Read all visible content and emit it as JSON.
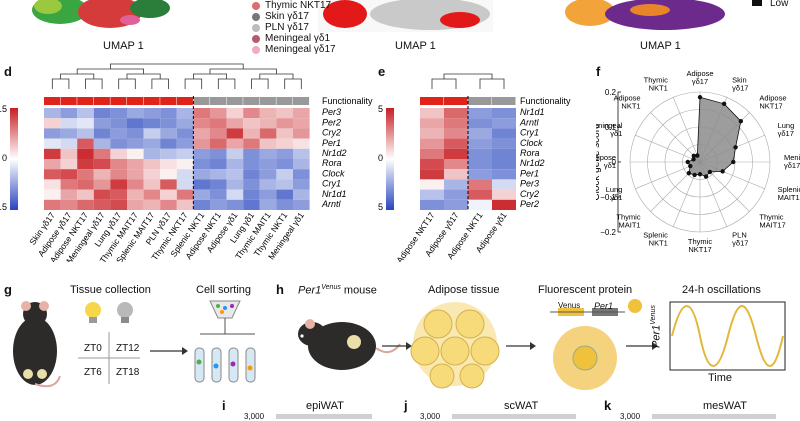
{
  "top": {
    "umap_label": "UMAP 1",
    "legend_items": [
      {
        "label": "Thymic NKT17",
        "color": "#e06d6d"
      },
      {
        "label": "Skin γδ17",
        "color": "#777777"
      },
      {
        "label": "PLN γδ17",
        "color": "#bdbdbd"
      },
      {
        "label": "Meningeal γδ1",
        "color": "#b85a6e"
      },
      {
        "label": "Meningeal γδ17",
        "color": "#f2a8c8"
      }
    ],
    "scale_low": "Low"
  },
  "panel_d": {
    "letter": "d",
    "title_scale": "z-score",
    "scale_ticks": [
      "1.5",
      "0",
      "−1.5"
    ],
    "functionality": "Functionality",
    "genes": [
      "Per3",
      "Per2",
      "Cry2",
      "Per1",
      "Nr1d2",
      "Rora",
      "Clock",
      "Cry1",
      "Nr1d1",
      "Arntl"
    ],
    "columns": [
      "Skin γδ17",
      "Adipose γδ17",
      "Adipose NKT17",
      "Meningeal γδ17",
      "Lung γδ17",
      "Thymic MAIT17",
      "Splenic MAIT17",
      "PLN γδ17",
      "Thymic NKT17",
      "Splenic NKT1",
      "Adipose NKT1",
      "Adipose γδ1",
      "Lung γδ1",
      "Thymic MAIT1",
      "Thymic NKT1",
      "Meningeal γδ1"
    ],
    "func_colors": [
      "#e0241a",
      "#e0241a",
      "#e0241a",
      "#e0241a",
      "#e0241a",
      "#e0241a",
      "#e0241a",
      "#e0241a",
      "#e0241a",
      "#999999",
      "#999999",
      "#999999",
      "#999999",
      "#999999",
      "#999999",
      "#999999"
    ],
    "matrix": [
      [
        -0.6,
        -0.8,
        -0.5,
        -1.0,
        -0.9,
        -0.7,
        -0.8,
        -0.9,
        -0.6,
        0.9,
        0.7,
        0.3,
        0.8,
        0.5,
        0.4,
        0.6
      ],
      [
        0.3,
        -0.3,
        -0.2,
        -0.8,
        -0.9,
        -1.1,
        -1.0,
        -0.9,
        -0.7,
        0.8,
        0.9,
        0.6,
        0.4,
        0.5,
        0.7,
        0.6
      ],
      [
        -0.8,
        -0.7,
        -0.5,
        -1.0,
        -0.8,
        -0.9,
        -0.4,
        -0.7,
        -0.9,
        0.6,
        0.8,
        1.3,
        0.5,
        1.0,
        0.4,
        0.7
      ],
      [
        -0.2,
        -0.3,
        1.1,
        -0.6,
        -0.9,
        -0.8,
        -0.7,
        -1.0,
        -0.8,
        0.7,
        1.0,
        0.6,
        0.9,
        0.4,
        0.3,
        0.2
      ],
      [
        1.3,
        0.4,
        1.4,
        0.9,
        0.3,
        0.1,
        -0.6,
        -0.5,
        -0.4,
        -0.8,
        -0.9,
        -0.4,
        -0.9,
        -0.7,
        -0.8,
        -0.5
      ],
      [
        0.6,
        0.3,
        1.3,
        1.2,
        0.8,
        0.6,
        0.4,
        0.2,
        0.1,
        -0.9,
        -1.0,
        -0.6,
        -0.9,
        -0.8,
        -0.9,
        -0.6
      ],
      [
        1.1,
        1.2,
        0.9,
        0.5,
        0.8,
        0.6,
        0.3,
        0.1,
        -0.3,
        -0.7,
        -0.6,
        -0.5,
        -1.0,
        -0.8,
        -0.4,
        -0.9
      ],
      [
        0.2,
        0.9,
        1.0,
        0.7,
        1.3,
        0.8,
        0.4,
        1.1,
        -0.3,
        -1.1,
        -1.0,
        -0.6,
        -0.9,
        -0.6,
        -0.5,
        -0.8
      ],
      [
        0.1,
        0.6,
        0.4,
        1.2,
        1.1,
        0.5,
        0.8,
        0.3,
        0.9,
        -0.7,
        -0.9,
        -0.3,
        -1.0,
        -0.8,
        -1.1,
        -0.6
      ],
      [
        0.9,
        0.8,
        1.0,
        1.1,
        1.2,
        0.6,
        0.5,
        0.8,
        0.4,
        -1.0,
        -0.8,
        -0.9,
        -1.1,
        -0.7,
        -0.9,
        -0.8
      ]
    ]
  },
  "panel_e": {
    "letter": "e",
    "title_scale": "z-score",
    "scale_ticks": [
      "1.5",
      "0",
      "−1.5"
    ],
    "functionality": "Functionality",
    "genes": [
      "Nr1d1",
      "Arntl",
      "Cry1",
      "Clock",
      "Rora",
      "Nr1d2",
      "Per1",
      "Per3",
      "Cry2",
      "Per2"
    ],
    "columns": [
      "Adipose NKT17",
      "Adipose γδ17",
      "Adipose NKT1",
      "Adipose γδ1"
    ],
    "func_colors": [
      "#e0241a",
      "#e0241a",
      "#999999",
      "#999999"
    ],
    "matrix": [
      [
        0.4,
        1.0,
        -0.8,
        -0.9
      ],
      [
        0.6,
        0.9,
        -0.9,
        -0.8
      ],
      [
        0.5,
        0.8,
        -0.7,
        -1.0
      ],
      [
        0.7,
        1.1,
        -0.8,
        -0.9
      ],
      [
        0.9,
        1.3,
        -0.9,
        -1.0
      ],
      [
        1.2,
        0.8,
        -0.9,
        -1.0
      ],
      [
        1.3,
        0.4,
        -0.8,
        -0.9
      ],
      [
        0.1,
        -0.6,
        0.9,
        -0.3
      ],
      [
        -0.5,
        -0.8,
        1.1,
        0.3
      ],
      [
        -0.9,
        -0.8,
        -0.1,
        1.4
      ]
    ]
  },
  "panel_f": {
    "letter": "f",
    "ylabel": "Clock gene score",
    "ticks": [
      "0.2",
      "0.1",
      "0",
      "−0.1",
      "−0.2"
    ],
    "chart_data": {
      "type": "radar",
      "ylabel": "Clock gene score",
      "rlim": [
        -0.2,
        0.2
      ],
      "categories": [
        "Adipose γδ17",
        "Skin γδ17",
        "Adipose NKT17",
        "Lung γδ17",
        "Meningeal γδ17",
        "Splenic MAIT17",
        "Thymic MAIT17",
        "PLN γδ17",
        "Thymic NKT17",
        "Splenic NKT1",
        "Thymic MAIT1",
        "Lung γδ1",
        "Adipose γδ1",
        "Meningeal γδ1",
        "Adipose NKT1",
        "Thymic NKT1"
      ],
      "values": [
        0.17,
        0.16,
        0.13,
        0.02,
        -0.01,
        -0.06,
        -0.12,
        -0.11,
        -0.13,
        -0.12,
        -0.11,
        -0.14,
        -0.13,
        -0.16,
        -0.15,
        -0.16
      ]
    }
  },
  "panel_g": {
    "letter": "g",
    "tissue_collection": "Tissue collection",
    "cell_sorting": "Cell sorting",
    "zt_labels": [
      "ZT0",
      "ZT12",
      "ZT6",
      "ZT18"
    ]
  },
  "panel_h": {
    "letter": "h",
    "mouse_gene": "Per1",
    "mouse_super": "Venus",
    "mouse_suffix": " mouse",
    "adipose_tissue": "Adipose tissue",
    "fluorescent_protein": "Fluorescent protein",
    "venus": "Venus",
    "per1": "Per1",
    "oscillations": "24-h oscillations",
    "y_gene": "Per1",
    "y_super": "Venus",
    "time": "Time"
  },
  "panel_i": {
    "letter": "i",
    "title": "epiWAT",
    "tick": "3,000"
  },
  "panel_j": {
    "letter": "j",
    "title": "scWAT",
    "tick": "3,000"
  },
  "panel_k": {
    "letter": "k",
    "title": "mesWAT",
    "tick": "3,000"
  }
}
